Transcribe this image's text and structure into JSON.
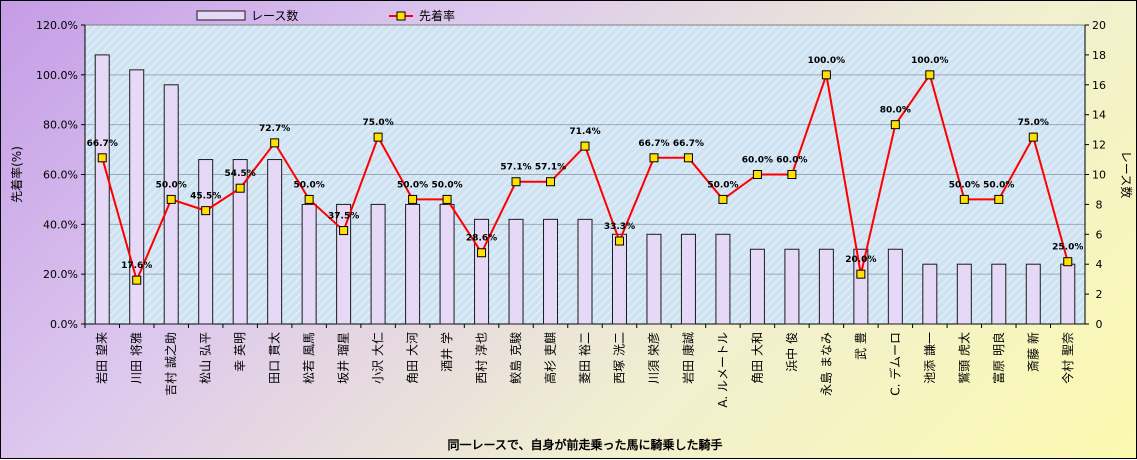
{
  "chart_data": {
    "type": "bar",
    "xlabel": "同一レースで、自身が前走乗った馬に騎乗した騎手",
    "ylabel_left": "先着率(%)",
    "ylabel_right": "レース数",
    "ylim_left": [
      0,
      120
    ],
    "ylim_right": [
      0,
      20
    ],
    "left_ticks": [
      "0.0%",
      "20.0%",
      "40.0%",
      "60.0%",
      "80.0%",
      "100.0%",
      "120.0%"
    ],
    "right_ticks": [
      "0",
      "2",
      "4",
      "6",
      "8",
      "10",
      "12",
      "14",
      "16",
      "18",
      "20"
    ],
    "grid": true,
    "legend_position": "top",
    "categories": [
      "岩田 望来",
      "川田 将雅",
      "吉村 誠之助",
      "松山 弘平",
      "幸 英明",
      "田口 貫太",
      "松若 風馬",
      "坂井 瑠星",
      "小沢 大仁",
      "角田 大河",
      "酒井 学",
      "西村 淳也",
      "鮫島 克駿",
      "高杉 吏麒",
      "菱田 裕二",
      "西塚 洸二",
      "川須 栄彦",
      "岩田 康誠",
      "A. ルメートル",
      "角田 大和",
      "浜中 俊",
      "永島 まなみ",
      "武 豊",
      "C. デムーロ",
      "池添 謙一",
      "鷲頭 虎太",
      "富原 明良",
      "斎藤 新",
      "今村 聖奈"
    ],
    "series": [
      {
        "name": "レース数",
        "type": "bar",
        "axis": "right",
        "values": [
          18,
          17,
          16,
          11,
          11,
          11,
          8,
          8,
          8,
          8,
          8,
          7,
          7,
          7,
          7,
          6,
          6,
          6,
          6,
          5,
          5,
          5,
          5,
          5,
          4,
          4,
          4,
          4,
          4
        ]
      },
      {
        "name": "先着率",
        "type": "line",
        "axis": "left",
        "values": [
          66.7,
          17.6,
          50.0,
          45.5,
          54.5,
          72.7,
          50.0,
          37.5,
          75.0,
          50.0,
          50.0,
          28.6,
          57.1,
          57.1,
          71.4,
          33.3,
          66.7,
          66.7,
          50.0,
          60.0,
          60.0,
          100.0,
          20.0,
          80.0,
          100.0,
          50.0,
          50.0,
          75.0,
          25.0
        ],
        "labels": [
          "66.7%",
          "17.6%",
          "50.0%",
          "45.5%",
          "54.5%",
          "72.7%",
          "50.0%",
          "37.5%",
          "75.0%",
          "50.0%",
          "50.0%",
          "28.6%",
          "57.1%",
          "57.1%",
          "71.4%",
          "33.3%",
          "66.7%",
          "66.7%",
          "50.0%",
          "60.0%",
          "60.0%",
          "100.0%",
          "20.0%",
          "80.0%",
          "100.0%",
          "50.0%",
          "50.0%",
          "75.0%",
          "25.0%"
        ]
      }
    ]
  },
  "colors": {
    "bar_fill": "#e6d8f7",
    "bar_stroke": "#1a1a1a",
    "line": "#ff0000",
    "marker_fill": "#ffe000",
    "marker_stroke": "#000000",
    "plot_bg": "#cfe3f2"
  }
}
